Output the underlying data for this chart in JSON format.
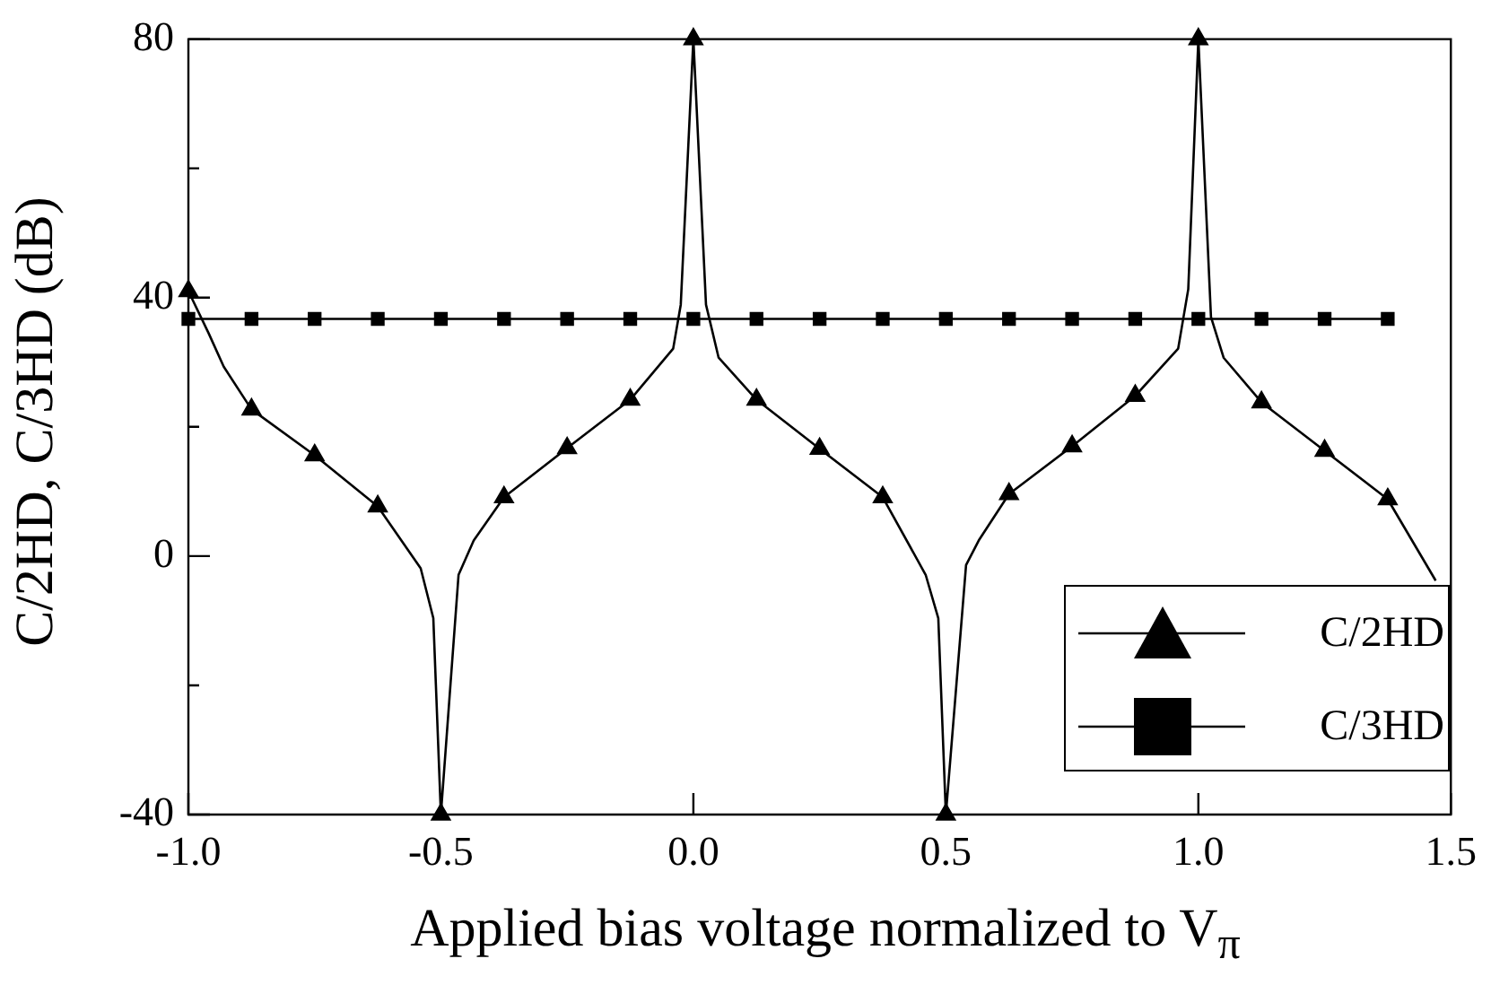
{
  "chart_data": {
    "type": "line",
    "xlabel": "Applied bias voltage normalized to V$_{π}$",
    "ylabel": "C/2HD, C/3HD (dB)",
    "xlim": [
      -1.0,
      1.5
    ],
    "ylim": [
      -40,
      80
    ],
    "xticks": [
      {
        "value": -1.0,
        "label": "-1.0"
      },
      {
        "value": -0.5,
        "label": "-0.5"
      },
      {
        "value": 0,
        "label": "0.0"
      },
      {
        "value": 0.5,
        "label": "0.5"
      },
      {
        "value": 1.0,
        "label": "1.0"
      },
      {
        "value": 1.5,
        "label": "1.5"
      }
    ],
    "yticks": [
      -40,
      {
        "value": -20,
        "label": null
      },
      0,
      {
        "value": 20,
        "label": null
      },
      40,
      {
        "value": 60,
        "label": null
      },
      80
    ],
    "grid": false,
    "legend": "bottom right",
    "line_style": "solid",
    "series": [
      {
        "name": "C/2HD",
        "color": "#000000",
        "marker": "triangle",
        "x": [
          -1.0,
          -0.96,
          -0.93,
          -0.875,
          -0.75,
          -0.625,
          -0.54,
          -0.515,
          -0.5,
          -0.465,
          -0.435,
          -0.375,
          -0.25,
          -0.125,
          -0.04,
          -0.025,
          0,
          0.025,
          0.05,
          0.125,
          0.25,
          0.375,
          0.46,
          0.485,
          0.5,
          0.54,
          0.565,
          0.625,
          0.75,
          0.875,
          0.96,
          0.98,
          1.0,
          1.025,
          1.05,
          1.125,
          1.25,
          1.375,
          1.47
        ],
        "values": [
          41,
          34.5,
          29.3,
          22.7,
          15.6,
          7.7,
          -1.9,
          -9.6,
          -40,
          -2.9,
          2.4,
          9.1,
          16.7,
          24.2,
          32.1,
          38.9,
          80,
          38.9,
          30.7,
          24.2,
          16.6,
          9.1,
          -2.9,
          -9.6,
          -40,
          -1.4,
          2.4,
          9.6,
          17,
          24.8,
          32.1,
          41.3,
          80,
          37,
          30.7,
          23.8,
          16.3,
          8.8,
          -3.8
        ]
      },
      {
        "name": "C/3HD",
        "color": "#000000",
        "marker": "square",
        "x": [
          -1.0,
          -0.875,
          -0.75,
          -0.625,
          -0.5,
          -0.375,
          -0.25,
          -0.125,
          0,
          0.125,
          0.25,
          0.375,
          0.5,
          0.625,
          0.75,
          0.875,
          1.0,
          1.125,
          1.25,
          1.375
        ],
        "values": [
          36.7,
          36.7,
          36.7,
          36.7,
          36.7,
          36.7,
          36.7,
          36.7,
          36.7,
          36.7,
          36.7,
          36.7,
          36.7,
          36.7,
          36.7,
          36.7,
          36.7,
          36.7,
          36.7,
          36.7
        ]
      }
    ]
  }
}
